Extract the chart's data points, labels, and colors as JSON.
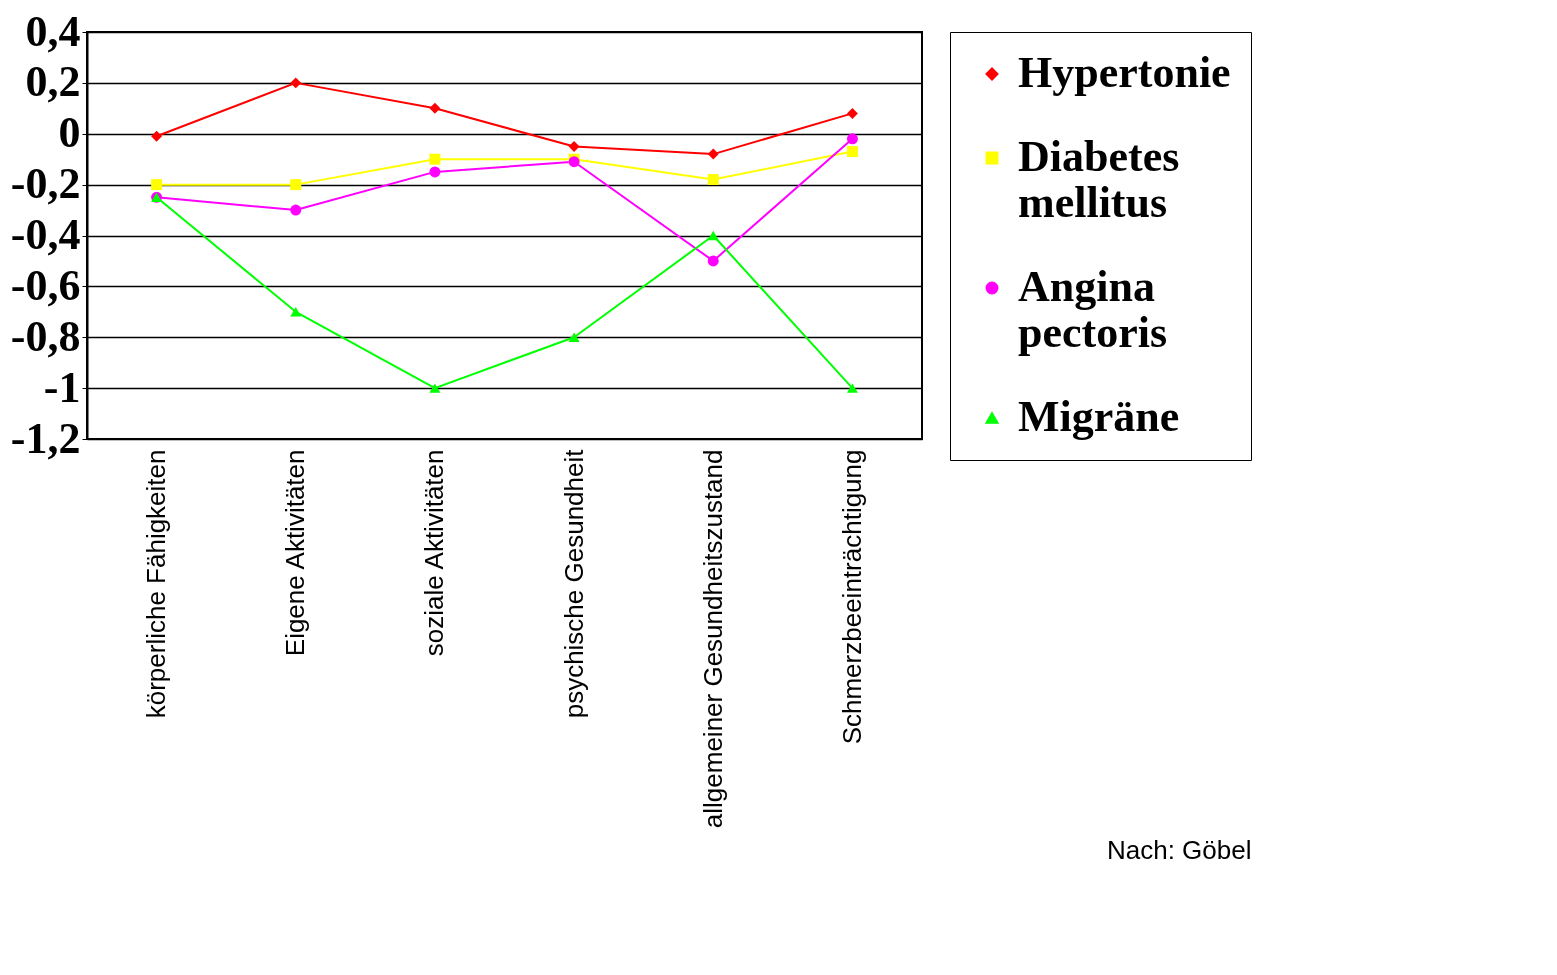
{
  "chart_data": {
    "type": "line",
    "categories": [
      "körperliche Fähigkeiten",
      "Eigene Aktivitäten",
      "soziale Aktivitäten",
      "psychische Gesundheit",
      "allgemeiner Gesundheitszustand",
      "Schmerzbeeinträchtigung"
    ],
    "series": [
      {
        "name": "Hypertonie",
        "color": "#ff0000",
        "marker": "diamond",
        "values": [
          -0.01,
          0.2,
          0.1,
          -0.05,
          -0.08,
          0.08
        ]
      },
      {
        "name": "Diabetes mellitus",
        "color": "#ffff00",
        "marker": "square",
        "values": [
          -0.2,
          -0.2,
          -0.1,
          -0.1,
          -0.18,
          -0.07
        ]
      },
      {
        "name": "Angina pectoris",
        "color": "#ff00ff",
        "marker": "circle",
        "values": [
          -0.25,
          -0.3,
          -0.15,
          -0.11,
          -0.5,
          -0.02
        ]
      },
      {
        "name": "Migräne",
        "color": "#00ff00",
        "marker": "triangle",
        "values": [
          -0.25,
          -0.7,
          -1,
          -0.8,
          -0.4,
          -1
        ]
      }
    ],
    "ylim": [
      -1.2,
      0.4
    ],
    "yticks": [
      {
        "value": -1.2,
        "label": "-1,2"
      },
      {
        "value": -1,
        "label": "-1"
      },
      {
        "value": -0.8,
        "label": "-0,8"
      },
      {
        "value": -0.6,
        "label": "-0,6"
      },
      {
        "value": -0.4,
        "label": "-0,4"
      },
      {
        "value": -0.2,
        "label": "-0,2"
      },
      {
        "value": 0,
        "label": "0"
      },
      {
        "value": 0.2,
        "label": "0,2"
      },
      {
        "value": 0.4,
        "label": "0,4"
      }
    ],
    "grid": "y",
    "legend": "right",
    "annotations": [
      "Nach: Göbel"
    ]
  }
}
